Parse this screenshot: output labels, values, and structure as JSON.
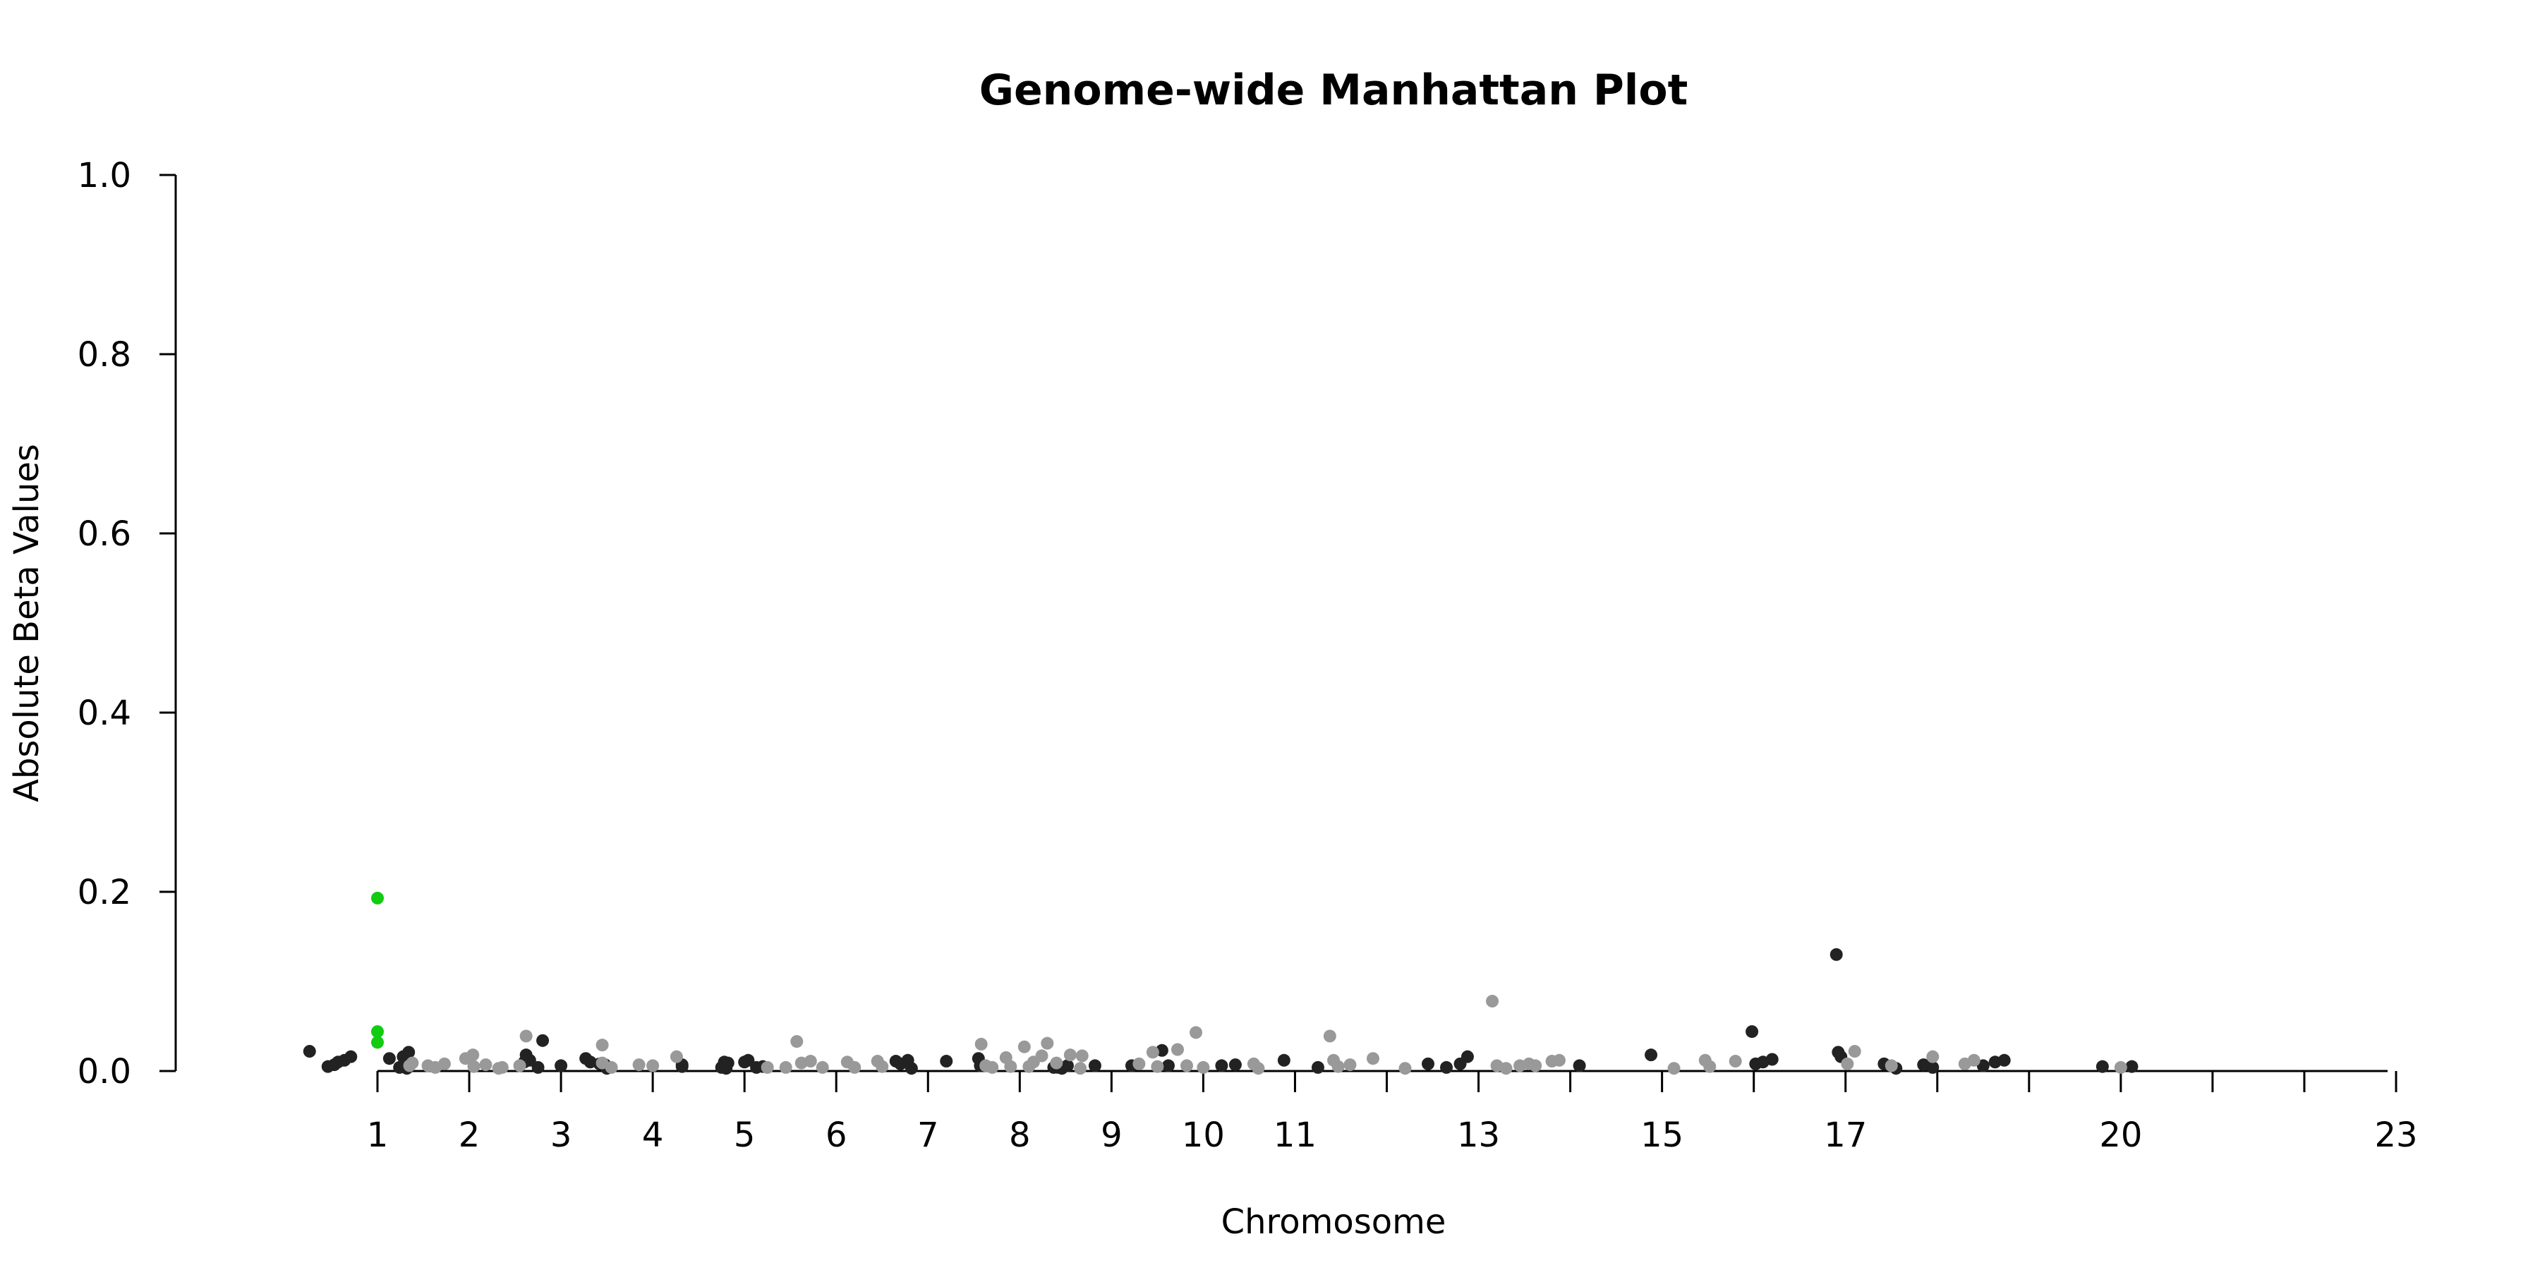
{
  "chart_data": {
    "type": "scatter",
    "title": "Genome-wide Manhattan Plot",
    "xlabel": "Chromosome",
    "ylabel": "Absolute Beta Values",
    "ylim": [
      0,
      1.0
    ],
    "yticks": [
      "0.0",
      "0.2",
      "0.4",
      "0.6",
      "0.8",
      "1.0"
    ],
    "xticks": [
      {
        "label": "1",
        "x": 1
      },
      {
        "label": "2",
        "x": 2
      },
      {
        "label": "3",
        "x": 3
      },
      {
        "label": "4",
        "x": 4
      },
      {
        "label": "5",
        "x": 5
      },
      {
        "label": "6",
        "x": 6
      },
      {
        "label": "7",
        "x": 7
      },
      {
        "label": "8",
        "x": 8
      },
      {
        "label": "9",
        "x": 9
      },
      {
        "label": "10",
        "x": 10
      },
      {
        "label": "11",
        "x": 11
      },
      {
        "label": "",
        "x": 12
      },
      {
        "label": "13",
        "x": 13
      },
      {
        "label": "",
        "x": 14
      },
      {
        "label": "15",
        "x": 15
      },
      {
        "label": "",
        "x": 16
      },
      {
        "label": "17",
        "x": 17
      },
      {
        "label": "",
        "x": 18
      },
      {
        "label": "",
        "x": 19
      },
      {
        "label": "20",
        "x": 20
      },
      {
        "label": "",
        "x": 21
      },
      {
        "label": "",
        "x": 22
      },
      {
        "label": "23",
        "x": 23
      }
    ],
    "grid": false,
    "colors": {
      "dark": "#222222",
      "light": "#999999",
      "highlight": "#11cc11"
    },
    "series": [
      {
        "color_key": "dark",
        "points": [
          [
            0.26,
            0.022
          ],
          [
            0.46,
            0.005
          ],
          [
            0.53,
            0.007
          ],
          [
            0.57,
            0.01
          ],
          [
            0.64,
            0.012
          ],
          [
            0.71,
            0.016
          ],
          [
            1.13,
            0.014
          ],
          [
            1.24,
            0.004
          ],
          [
            1.28,
            0.016
          ],
          [
            1.34,
            0.021
          ],
          [
            1.32,
            0.003
          ],
          [
            2.6,
            0.01
          ],
          [
            2.62,
            0.018
          ],
          [
            2.66,
            0.012
          ],
          [
            2.75,
            0.004
          ],
          [
            2.8,
            0.034
          ],
          [
            3.0,
            0.006
          ],
          [
            3.27,
            0.014
          ],
          [
            3.32,
            0.01
          ],
          [
            3.42,
            0.008
          ],
          [
            3.48,
            0.007
          ],
          [
            3.5,
            0.003
          ],
          [
            4.32,
            0.007
          ],
          [
            4.32,
            0.005
          ],
          [
            4.75,
            0.004
          ],
          [
            4.78,
            0.01
          ],
          [
            4.82,
            0.009
          ],
          [
            4.8,
            0.003
          ],
          [
            5.0,
            0.01
          ],
          [
            5.04,
            0.012
          ],
          [
            5.13,
            0.004
          ],
          [
            5.2,
            0.005
          ],
          [
            6.65,
            0.011
          ],
          [
            6.7,
            0.008
          ],
          [
            6.78,
            0.012
          ],
          [
            6.82,
            0.003
          ],
          [
            7.2,
            0.011
          ],
          [
            7.55,
            0.014
          ],
          [
            7.57,
            0.006
          ],
          [
            8.37,
            0.004
          ],
          [
            8.42,
            0.004
          ],
          [
            8.46,
            0.003
          ],
          [
            8.52,
            0.006
          ],
          [
            8.82,
            0.006
          ],
          [
            9.22,
            0.006
          ],
          [
            9.55,
            0.023
          ],
          [
            9.62,
            0.006
          ],
          [
            10.2,
            0.006
          ],
          [
            10.35,
            0.007
          ],
          [
            10.88,
            0.012
          ],
          [
            11.25,
            0.004
          ],
          [
            12.45,
            0.008
          ],
          [
            12.65,
            0.004
          ],
          [
            12.8,
            0.008
          ],
          [
            12.88,
            0.016
          ],
          [
            14.1,
            0.006
          ],
          [
            14.88,
            0.018
          ],
          [
            15.98,
            0.044
          ],
          [
            16.02,
            0.008
          ],
          [
            16.1,
            0.01
          ],
          [
            16.2,
            0.013
          ],
          [
            16.9,
            0.13
          ],
          [
            16.92,
            0.021
          ],
          [
            16.95,
            0.016
          ],
          [
            17.42,
            0.008
          ],
          [
            17.55,
            0.003
          ],
          [
            17.85,
            0.007
          ],
          [
            17.95,
            0.004
          ],
          [
            18.5,
            0.006
          ],
          [
            18.63,
            0.01
          ],
          [
            18.73,
            0.012
          ],
          [
            19.8,
            0.005
          ],
          [
            20.12,
            0.005
          ]
        ]
      },
      {
        "color_key": "light",
        "points": [
          [
            1.35,
            0.006
          ],
          [
            1.38,
            0.009
          ],
          [
            1.55,
            0.006
          ],
          [
            1.63,
            0.004
          ],
          [
            1.73,
            0.008
          ],
          [
            1.96,
            0.014
          ],
          [
            2.04,
            0.018
          ],
          [
            2.05,
            0.005
          ],
          [
            2.18,
            0.007
          ],
          [
            2.32,
            0.003
          ],
          [
            2.36,
            0.004
          ],
          [
            2.55,
            0.006
          ],
          [
            2.62,
            0.039
          ],
          [
            3.45,
            0.029
          ],
          [
            3.45,
            0.009
          ],
          [
            3.55,
            0.004
          ],
          [
            3.85,
            0.007
          ],
          [
            4.0,
            0.006
          ],
          [
            4.26,
            0.016
          ],
          [
            5.25,
            0.004
          ],
          [
            5.45,
            0.004
          ],
          [
            5.57,
            0.033
          ],
          [
            5.62,
            0.009
          ],
          [
            5.72,
            0.011
          ],
          [
            5.85,
            0.004
          ],
          [
            6.12,
            0.01
          ],
          [
            6.2,
            0.004
          ],
          [
            6.45,
            0.011
          ],
          [
            6.5,
            0.005
          ],
          [
            7.58,
            0.03
          ],
          [
            7.63,
            0.006
          ],
          [
            7.7,
            0.004
          ],
          [
            7.85,
            0.015
          ],
          [
            7.9,
            0.005
          ],
          [
            8.05,
            0.027
          ],
          [
            8.1,
            0.005
          ],
          [
            8.15,
            0.01
          ],
          [
            8.24,
            0.017
          ],
          [
            8.3,
            0.031
          ],
          [
            8.4,
            0.009
          ],
          [
            8.55,
            0.018
          ],
          [
            8.68,
            0.017
          ],
          [
            8.66,
            0.003
          ],
          [
            9.3,
            0.008
          ],
          [
            9.45,
            0.021
          ],
          [
            9.5,
            0.005
          ],
          [
            9.72,
            0.024
          ],
          [
            9.82,
            0.006
          ],
          [
            9.92,
            0.043
          ],
          [
            10.0,
            0.004
          ],
          [
            10.55,
            0.008
          ],
          [
            10.6,
            0.003
          ],
          [
            11.38,
            0.039
          ],
          [
            11.42,
            0.012
          ],
          [
            11.47,
            0.005
          ],
          [
            11.6,
            0.007
          ],
          [
            11.85,
            0.014
          ],
          [
            12.2,
            0.003
          ],
          [
            13.15,
            0.078
          ],
          [
            13.2,
            0.006
          ],
          [
            13.3,
            0.003
          ],
          [
            13.45,
            0.006
          ],
          [
            13.55,
            0.008
          ],
          [
            13.62,
            0.006
          ],
          [
            13.8,
            0.011
          ],
          [
            13.88,
            0.012
          ],
          [
            15.13,
            0.003
          ],
          [
            15.47,
            0.012
          ],
          [
            15.52,
            0.005
          ],
          [
            15.8,
            0.011
          ],
          [
            17.02,
            0.008
          ],
          [
            17.1,
            0.022
          ],
          [
            17.5,
            0.006
          ],
          [
            17.95,
            0.016
          ],
          [
            18.3,
            0.008
          ],
          [
            18.4,
            0.012
          ],
          [
            20.0,
            0.004
          ]
        ]
      },
      {
        "color_key": "highlight",
        "points": [
          [
            1.0,
            0.193
          ],
          [
            1.0,
            0.044
          ],
          [
            1.0,
            0.032
          ]
        ]
      }
    ]
  }
}
